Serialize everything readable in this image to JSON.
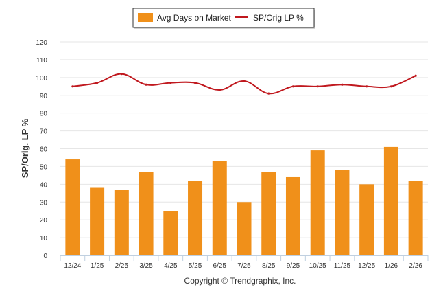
{
  "chart_data": {
    "type": "bar+line",
    "categories": [
      "12/24",
      "1/25",
      "2/25",
      "3/25",
      "4/25",
      "5/25",
      "6/25",
      "7/25",
      "8/25",
      "9/25",
      "10/25",
      "11/25",
      "12/25",
      "1/26",
      "2/26"
    ],
    "series": [
      {
        "name": "Avg Days on Market",
        "type": "bar",
        "color": "#F0901A",
        "values": [
          54,
          38,
          37,
          47,
          25,
          42,
          53,
          30,
          47,
          44,
          59,
          48,
          40,
          61,
          42
        ]
      },
      {
        "name": "SP/Orig LP %",
        "type": "line",
        "color": "#C0181E",
        "values": [
          95,
          97,
          102,
          96,
          97,
          97,
          93,
          98,
          91,
          95,
          95,
          96,
          95,
          95,
          101
        ]
      }
    ],
    "ylabel": "SP/Orig. LP %",
    "ylim": [
      0,
      120
    ],
    "yticks": [
      0,
      10,
      20,
      30,
      40,
      50,
      60,
      70,
      80,
      90,
      100,
      110,
      120
    ],
    "grid": true,
    "legend_position": "top-center",
    "credits": "Copyright © Trendgraphix, Inc."
  }
}
